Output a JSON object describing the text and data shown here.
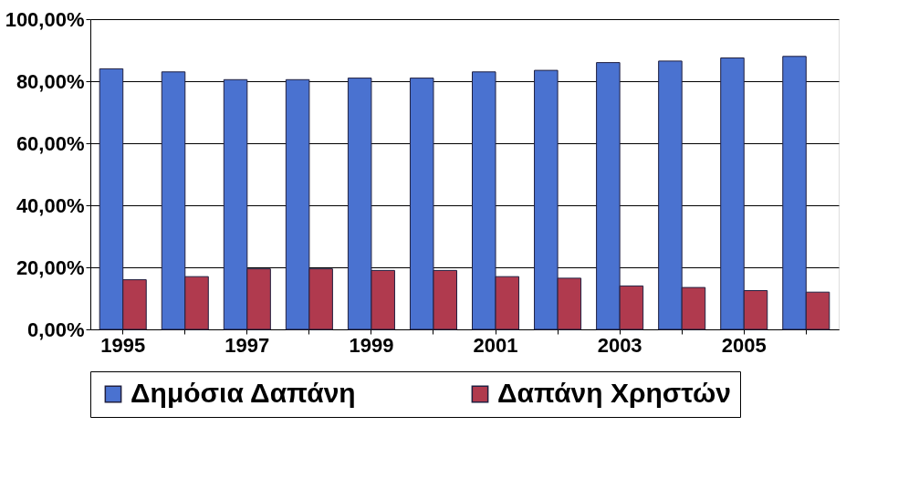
{
  "chart_data": {
    "type": "bar",
    "categories": [
      "1995",
      null,
      "1997",
      null,
      "1999",
      null,
      "2001",
      null,
      "2003",
      null,
      "2005",
      null
    ],
    "series": [
      {
        "name": "Δημόσια Δαπάνη",
        "color": "#4a72d0",
        "values": [
          84,
          83,
          80.5,
          80.5,
          81,
          81,
          83,
          83.5,
          86,
          86.5,
          87.5,
          88
        ]
      },
      {
        "name": "Δαπάνη Χρηστών",
        "color": "#b03a4e",
        "values": [
          16,
          17,
          19.5,
          19.5,
          19,
          19,
          17,
          16.5,
          14,
          13.5,
          12.5,
          12
        ]
      }
    ],
    "ylim": [
      0,
      100
    ],
    "yticks": [
      {
        "value": 0,
        "label": "0,00%"
      },
      {
        "value": 20,
        "label": "20,00%"
      },
      {
        "value": 40,
        "label": "40,00%"
      },
      {
        "value": 60,
        "label": "60,00%"
      },
      {
        "value": 80,
        "label": "80,00%"
      },
      {
        "value": 100,
        "label": "100,00%"
      }
    ],
    "grid": "y",
    "legend": "bottom"
  }
}
